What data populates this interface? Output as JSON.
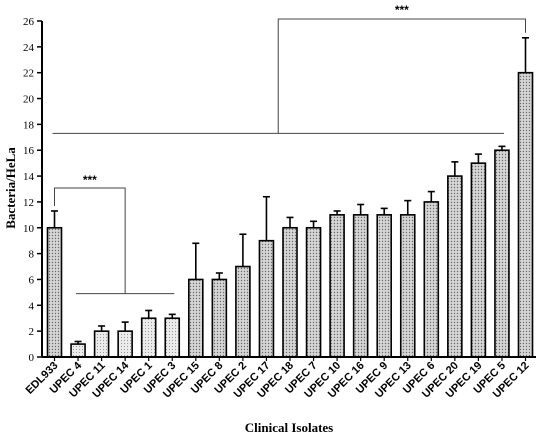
{
  "chart_data": {
    "type": "bar",
    "xlabel": "Clinical  Isolates",
    "ylabel": "Bacteria/HeLa",
    "ylim": [
      0,
      26
    ],
    "yticks": [
      0,
      2,
      4,
      6,
      8,
      10,
      12,
      14,
      16,
      18,
      20,
      22,
      24,
      26
    ],
    "grid": false,
    "categories": [
      "EDL933",
      "UPEC 4",
      "UPEC 11",
      "UPEC 14",
      "UPEC 1",
      "UPEC 3",
      "UPEC 15",
      "UPEC 8",
      "UPEC 2",
      "UPEC 17",
      "UPEC 18",
      "UPEC 7",
      "UPEC 10",
      "UPEC 16",
      "UPEC 9",
      "UPEC 13",
      "UPEC 6",
      "UPEC 20",
      "UPEC 19",
      "UPEC 5",
      "UPEC 12"
    ],
    "values": [
      10,
      1,
      2,
      2,
      3,
      3,
      6,
      6,
      7,
      9,
      10,
      10,
      11,
      11,
      11,
      11,
      12,
      14,
      15,
      16,
      22
    ],
    "errors": [
      1.3,
      0.2,
      0.4,
      0.7,
      0.6,
      0.3,
      2.8,
      0.5,
      2.5,
      3.4,
      0.8,
      0.5,
      0.3,
      0.8,
      0.5,
      1.1,
      0.8,
      1.1,
      0.7,
      0.3,
      2.7
    ],
    "annotations": [
      {
        "text": "***",
        "left_group": [
          "EDL933"
        ],
        "right_group": [
          "UPEC 4",
          "UPEC 11",
          "UPEC 14",
          "UPEC 1",
          "UPEC 3"
        ]
      },
      {
        "text": "***",
        "left_group": [
          "EDL933",
          "UPEC 5"
        ],
        "right_group": [
          "UPEC 12"
        ]
      }
    ]
  }
}
